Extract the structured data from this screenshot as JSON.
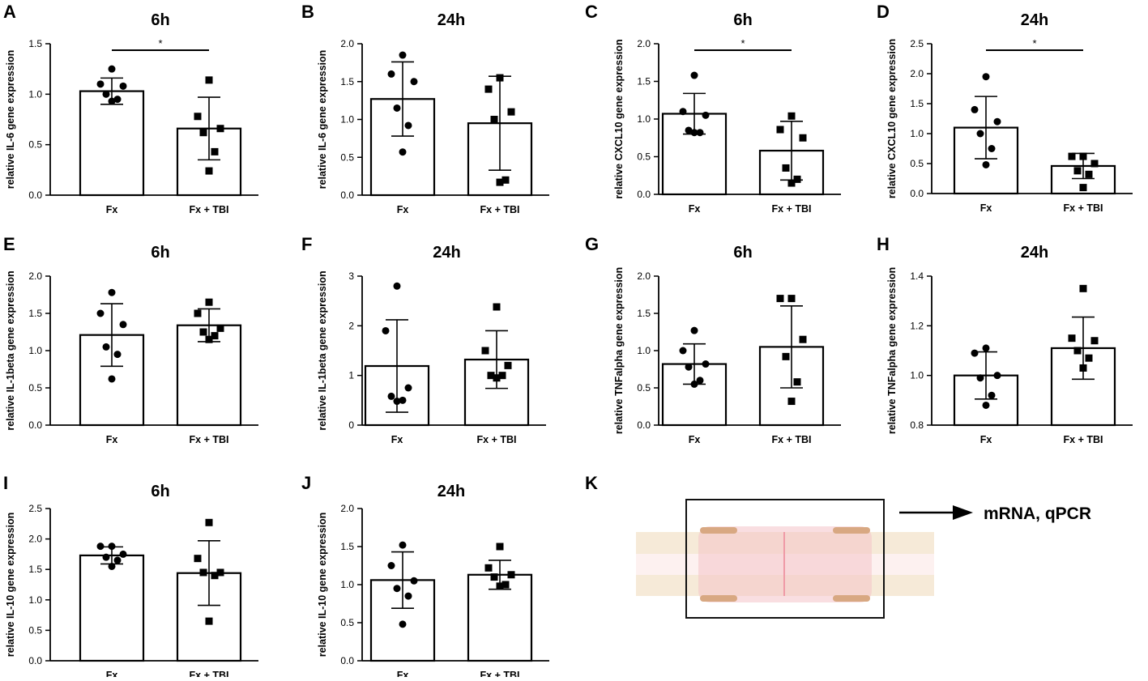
{
  "chart_data": [
    {
      "panel": "A",
      "type": "bar",
      "title": "6h",
      "ylabel": "relative IL-6 gene expression",
      "ylim": [
        0,
        1.5
      ],
      "yticks": [
        "0.0",
        "0.5",
        "1.0",
        "1.5"
      ],
      "categories": [
        "Fx",
        "Fx + TBI"
      ],
      "series": [
        {
          "name": "Fx",
          "mean": 1.03,
          "sd": 0.13,
          "marker": "circle",
          "points": [
            1.25,
            1.1,
            1.08,
            1.0,
            0.95,
            0.93
          ]
        },
        {
          "name": "Fx + TBI",
          "mean": 0.66,
          "sd": 0.31,
          "marker": "square",
          "points": [
            1.14,
            0.78,
            0.66,
            0.62,
            0.43,
            0.24
          ]
        }
      ],
      "significance": "*"
    },
    {
      "panel": "B",
      "type": "bar",
      "title": "24h",
      "ylabel": "relative IL-6 gene expression",
      "ylim": [
        0,
        2.0
      ],
      "yticks": [
        "0.0",
        "0.5",
        "1.0",
        "1.5",
        "2.0"
      ],
      "categories": [
        "Fx",
        "Fx + TBI"
      ],
      "series": [
        {
          "name": "Fx",
          "mean": 1.27,
          "sd": 0.49,
          "marker": "circle",
          "points": [
            1.85,
            1.6,
            1.5,
            1.15,
            0.92,
            0.57
          ]
        },
        {
          "name": "Fx + TBI",
          "mean": 0.95,
          "sd": 0.62,
          "marker": "square",
          "points": [
            1.55,
            1.4,
            1.1,
            1.0,
            0.2,
            0.17
          ]
        }
      ],
      "significance": ""
    },
    {
      "panel": "C",
      "type": "bar",
      "title": "6h",
      "ylabel": "relative CXCL10 gene expression",
      "ylim": [
        0,
        2.0
      ],
      "yticks": [
        "0.0",
        "0.5",
        "1.0",
        "1.5",
        "2.0"
      ],
      "categories": [
        "Fx",
        "Fx + TBI"
      ],
      "series": [
        {
          "name": "Fx",
          "mean": 1.07,
          "sd": 0.27,
          "marker": "circle",
          "points": [
            1.58,
            1.1,
            1.05,
            0.85,
            0.82,
            0.82
          ]
        },
        {
          "name": "Fx + TBI",
          "mean": 0.58,
          "sd": 0.39,
          "marker": "square",
          "points": [
            1.04,
            0.86,
            0.75,
            0.35,
            0.2,
            0.15
          ]
        }
      ],
      "significance": "*"
    },
    {
      "panel": "D",
      "type": "bar",
      "title": "24h",
      "ylabel": "relative CXCL10 gene expression",
      "ylim": [
        0,
        2.5
      ],
      "yticks": [
        "0.0",
        "0.5",
        "1.0",
        "1.5",
        "2.0",
        "2.5"
      ],
      "categories": [
        "Fx",
        "Fx + TBI"
      ],
      "series": [
        {
          "name": "Fx",
          "mean": 1.1,
          "sd": 0.52,
          "marker": "circle",
          "points": [
            1.95,
            1.4,
            1.2,
            1.0,
            0.75,
            0.48
          ]
        },
        {
          "name": "Fx + TBI",
          "mean": 0.46,
          "sd": 0.21,
          "marker": "square",
          "points": [
            0.62,
            0.62,
            0.5,
            0.38,
            0.32,
            0.1
          ]
        }
      ],
      "significance": "*"
    },
    {
      "panel": "E",
      "type": "bar",
      "title": "6h",
      "ylabel": "relative IL-1beta gene expression",
      "ylim": [
        0,
        2.0
      ],
      "yticks": [
        "0.0",
        "0.5",
        "1.0",
        "1.5",
        "2.0"
      ],
      "categories": [
        "Fx",
        "Fx + TBI"
      ],
      "series": [
        {
          "name": "Fx",
          "mean": 1.21,
          "sd": 0.42,
          "marker": "circle",
          "points": [
            1.78,
            1.5,
            1.35,
            1.05,
            0.95,
            0.62
          ]
        },
        {
          "name": "Fx + TBI",
          "mean": 1.34,
          "sd": 0.22,
          "marker": "square",
          "points": [
            1.65,
            1.5,
            1.3,
            1.25,
            1.2,
            1.15
          ]
        }
      ],
      "significance": ""
    },
    {
      "panel": "F",
      "type": "bar",
      "title": "24h",
      "ylabel": "relative IL-1beta gene expression",
      "ylim": [
        0,
        3
      ],
      "yticks": [
        "0",
        "1",
        "2",
        "3"
      ],
      "categories": [
        "Fx",
        "Fx + TBI"
      ],
      "series": [
        {
          "name": "Fx",
          "mean": 1.19,
          "sd": 0.93,
          "marker": "circle",
          "points": [
            2.8,
            1.9,
            0.75,
            0.58,
            0.5,
            0.48
          ]
        },
        {
          "name": "Fx + TBI",
          "mean": 1.32,
          "sd": 0.58,
          "marker": "square",
          "points": [
            2.38,
            1.5,
            1.2,
            1.0,
            1.0,
            0.95
          ]
        }
      ],
      "significance": ""
    },
    {
      "panel": "G",
      "type": "bar",
      "title": "6h",
      "ylabel": "relative TNFalpha gene expression",
      "ylim": [
        0,
        2.0
      ],
      "yticks": [
        "0.0",
        "0.5",
        "1.0",
        "1.5",
        "2.0"
      ],
      "categories": [
        "Fx",
        "Fx + TBI"
      ],
      "series": [
        {
          "name": "Fx",
          "mean": 0.82,
          "sd": 0.27,
          "marker": "circle",
          "points": [
            1.27,
            1.0,
            0.82,
            0.78,
            0.6,
            0.55
          ]
        },
        {
          "name": "Fx + TBI",
          "mean": 1.05,
          "sd": 0.55,
          "marker": "square",
          "points": [
            1.7,
            1.7,
            1.15,
            0.92,
            0.58,
            0.32
          ]
        }
      ],
      "significance": ""
    },
    {
      "panel": "H",
      "type": "bar",
      "title": "24h",
      "ylabel": "relative TNFalpha gene expression",
      "ylim": [
        0.8,
        1.4
      ],
      "yticks": [
        "0.8",
        "1.0",
        "1.2",
        "1.4"
      ],
      "categories": [
        "Fx",
        "Fx + TBI"
      ],
      "series": [
        {
          "name": "Fx",
          "mean": 1.0,
          "sd": 0.095,
          "marker": "circle",
          "points": [
            1.11,
            1.09,
            1.0,
            0.99,
            0.92,
            0.88
          ]
        },
        {
          "name": "Fx + TBI",
          "mean": 1.11,
          "sd": 0.125,
          "marker": "square",
          "points": [
            1.35,
            1.15,
            1.14,
            1.1,
            1.07,
            1.03
          ]
        }
      ],
      "significance": ""
    },
    {
      "panel": "I",
      "type": "bar",
      "title": "6h",
      "ylabel": "relative IL-10 gene expression",
      "ylim": [
        0,
        2.5
      ],
      "yticks": [
        "0.0",
        "0.5",
        "1.0",
        "1.5",
        "2.0",
        "2.5"
      ],
      "categories": [
        "Fx",
        "Fx + TBI"
      ],
      "series": [
        {
          "name": "Fx",
          "mean": 1.73,
          "sd": 0.14,
          "marker": "circle",
          "points": [
            1.88,
            1.88,
            1.75,
            1.7,
            1.65,
            1.55
          ]
        },
        {
          "name": "Fx + TBI",
          "mean": 1.44,
          "sd": 0.53,
          "marker": "square",
          "points": [
            2.27,
            1.68,
            1.45,
            1.45,
            1.4,
            0.65
          ]
        }
      ],
      "significance": ""
    },
    {
      "panel": "J",
      "type": "bar",
      "title": "24h",
      "ylabel": "relative IL-10 gene expression",
      "ylim": [
        0,
        2.0
      ],
      "yticks": [
        "0.0",
        "0.5",
        "1.0",
        "1.5",
        "2.0"
      ],
      "categories": [
        "Fx",
        "Fx + TBI"
      ],
      "series": [
        {
          "name": "Fx",
          "mean": 1.06,
          "sd": 0.37,
          "marker": "circle",
          "points": [
            1.52,
            1.25,
            1.05,
            0.95,
            0.85,
            0.48
          ]
        },
        {
          "name": "Fx + TBI",
          "mean": 1.13,
          "sd": 0.19,
          "marker": "square",
          "points": [
            1.5,
            1.22,
            1.13,
            1.1,
            1.0,
            0.98
          ]
        }
      ],
      "significance": ""
    }
  ],
  "panel_k": {
    "label": "K",
    "arrow_text": "mRNA, qPCR",
    "colors": {
      "bone": "#f6ead8",
      "marrow": "#fdf1f0",
      "gap_pink": "#f4c3c9",
      "callus": "#d8a882",
      "frame": "#111111"
    }
  },
  "colors": {
    "ink": "#000000",
    "bar_fill": "#ffffff"
  }
}
